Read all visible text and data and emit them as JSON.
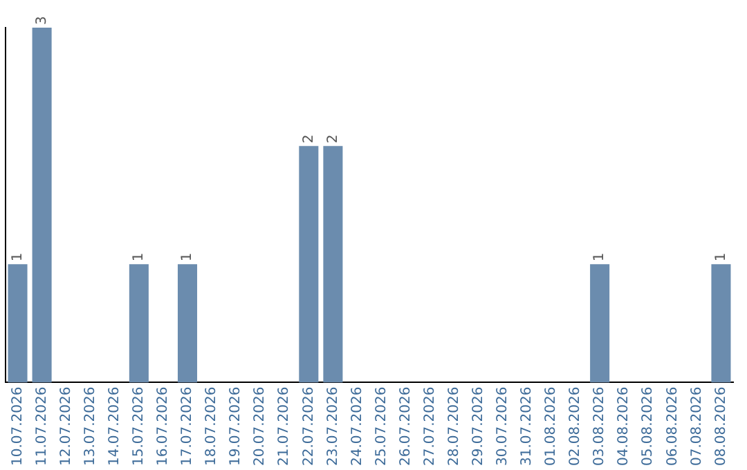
{
  "chart_data": {
    "type": "bar",
    "categories": [
      "10.07.2026",
      "11.07.2026",
      "12.07.2026",
      "13.07.2026",
      "14.07.2026",
      "15.07.2026",
      "16.07.2026",
      "17.07.2026",
      "18.07.2026",
      "19.07.2026",
      "20.07.2026",
      "21.07.2026",
      "22.07.2026",
      "23.07.2026",
      "24.07.2026",
      "25.07.2026",
      "26.07.2026",
      "27.07.2026",
      "28.07.2026",
      "29.07.2026",
      "30.07.2026",
      "31.07.2026",
      "01.08.2026",
      "02.08.2026",
      "03.08.2026",
      "04.08.2026",
      "05.08.2026",
      "06.08.2026",
      "07.08.2026",
      "08.08.2026"
    ],
    "values": [
      1,
      3,
      0,
      0,
      0,
      1,
      0,
      1,
      0,
      0,
      0,
      0,
      2,
      2,
      0,
      0,
      0,
      0,
      0,
      0,
      0,
      0,
      0,
      0,
      1,
      0,
      0,
      0,
      0,
      1
    ],
    "value_labels": [
      "1",
      "3",
      null,
      null,
      null,
      "1",
      null,
      "1",
      null,
      null,
      null,
      null,
      "2",
      "2",
      null,
      null,
      null,
      null,
      null,
      null,
      null,
      null,
      null,
      null,
      "1",
      null,
      null,
      null,
      null,
      "1"
    ],
    "color": "#6b8cae",
    "ylim": [
      0,
      3
    ],
    "grid": false,
    "legend": false,
    "tick_labels": "x"
  }
}
